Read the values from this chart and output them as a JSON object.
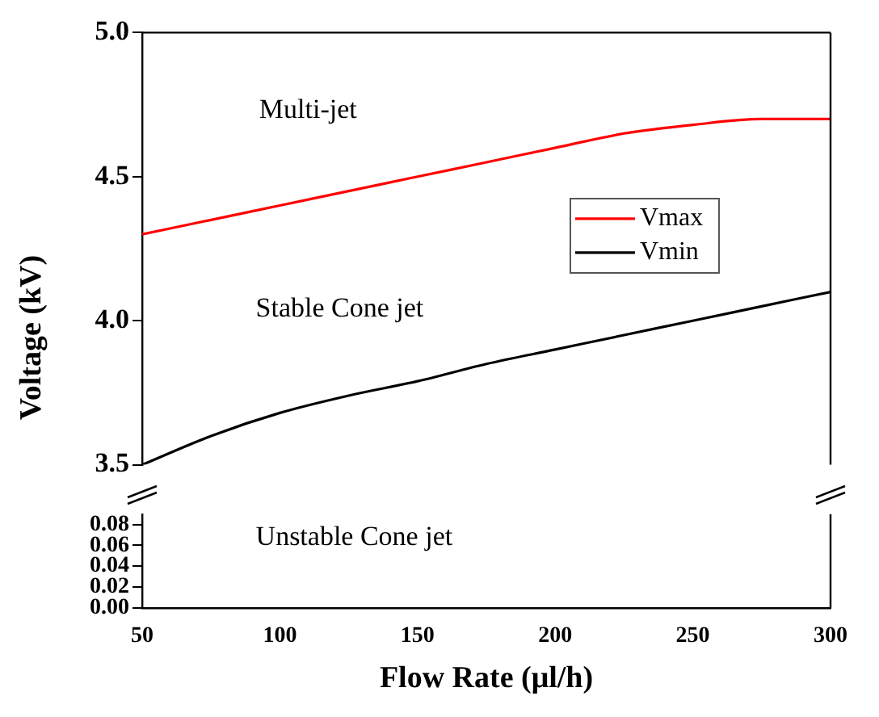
{
  "chart_data": [
    {
      "type": "line",
      "ylabel": "Voltage (kV)",
      "xlim": [
        50,
        300
      ],
      "xticks": [
        50,
        100,
        150,
        200,
        250,
        300
      ],
      "ylim": [
        3.5,
        5.0
      ],
      "yticks": [
        {
          "value": 3.5,
          "label": "3.5"
        },
        {
          "value": 4.0,
          "label": "4.0"
        },
        {
          "value": 4.5,
          "label": "4.5"
        },
        {
          "value": 5.0,
          "label": "5.0"
        }
      ],
      "tick_labels": "y",
      "legend": "right",
      "grid": false,
      "marker": "none",
      "line_style": "solid",
      "x": [
        50,
        75,
        100,
        125,
        150,
        175,
        200,
        225,
        250,
        275,
        300
      ],
      "series": [
        {
          "name": "Vmax",
          "color": "#ff0000",
          "values": [
            4.3,
            4.35,
            4.4,
            4.45,
            4.5,
            4.55,
            4.6,
            4.65,
            4.68,
            4.7,
            4.7
          ]
        },
        {
          "name": "Vmin",
          "color": "#000000",
          "values": [
            3.5,
            3.6,
            3.68,
            3.74,
            3.79,
            3.85,
            3.9,
            3.95,
            4.0,
            4.05,
            4.1
          ]
        }
      ],
      "annotations": [
        "Multi-jet",
        "Stable Cone jet"
      ]
    },
    {
      "type": "line",
      "xlabel": "Flow Rate (μl/h)",
      "xlim": [
        50,
        300
      ],
      "xticks": [
        50,
        100,
        150,
        200,
        250,
        300
      ],
      "ylim": [
        0,
        0.09
      ],
      "yticks": [
        {
          "value": 0,
          "label": "0.00"
        },
        {
          "value": 0.02,
          "label": "0.02"
        },
        {
          "value": 0.04,
          "label": "0.04"
        },
        {
          "value": 0.06,
          "label": "0.06"
        },
        {
          "value": 0.08,
          "label": "0.08"
        }
      ],
      "grid": false,
      "annotations": [
        "Unstable Cone jet"
      ]
    }
  ]
}
